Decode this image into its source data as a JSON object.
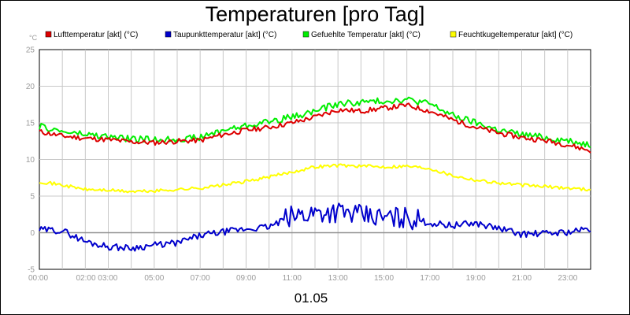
{
  "chart_data": {
    "type": "line",
    "title": "Temperaturen [pro Tag]",
    "ylabel": "°C",
    "xlabel": "01.05",
    "ylim": [
      -5,
      25
    ],
    "xlim": [
      0,
      24
    ],
    "y_ticks": [
      "25",
      "20",
      "15",
      "10",
      "5",
      "0",
      "-5"
    ],
    "x_tick_labels": [
      "00:00",
      "02:00 03:00",
      "05:00",
      "07:00",
      "09:00",
      "11:00",
      "13:00",
      "15:00",
      "17:00",
      "19:00",
      "21:00",
      "23:00"
    ],
    "grid": true,
    "legend_position": "top",
    "series": [
      {
        "name": "Lufttemperatur [akt] (°C)",
        "color": "#dd0000",
        "x": [
          0,
          1,
          2,
          3,
          4,
          5,
          6,
          7,
          8,
          9,
          10,
          11,
          12,
          13,
          14,
          15,
          16,
          17,
          18,
          19,
          20,
          21,
          22,
          23,
          24
        ],
        "values": [
          13.8,
          13.2,
          12.9,
          12.7,
          12.4,
          12.3,
          12.5,
          12.6,
          13.4,
          14.0,
          14.4,
          15.0,
          15.8,
          16.8,
          16.6,
          17.0,
          17.4,
          16.6,
          15.4,
          14.4,
          13.6,
          13.0,
          12.6,
          12.0,
          11.2
        ]
      },
      {
        "name": "Taupunkttemperatur [akt] (°C)",
        "color": "#0000cc",
        "x": [
          0,
          1,
          2,
          3,
          4,
          5,
          6,
          7,
          8,
          9,
          10,
          11,
          12,
          13,
          14,
          15,
          16,
          17,
          18,
          19,
          20,
          21,
          22,
          23,
          24
        ],
        "values": [
          0.4,
          0.3,
          -1.2,
          -1.9,
          -2.1,
          -1.7,
          -1.4,
          -0.4,
          0.1,
          0.5,
          0.8,
          2.2,
          2.8,
          2.9,
          2.3,
          2.0,
          2.1,
          1.3,
          1.0,
          1.3,
          0.6,
          -0.2,
          -0.1,
          0.1,
          0.5
        ]
      },
      {
        "name": "Gefuehlte Temperatur [akt] (°C)",
        "color": "#00ee00",
        "x": [
          0,
          1,
          2,
          3,
          4,
          5,
          6,
          7,
          8,
          9,
          10,
          11,
          12,
          13,
          14,
          15,
          16,
          17,
          18,
          19,
          20,
          21,
          22,
          23,
          24
        ],
        "values": [
          14.5,
          13.8,
          13.4,
          13.1,
          12.8,
          12.7,
          12.8,
          13.0,
          14.0,
          14.6,
          15.2,
          15.8,
          16.6,
          17.6,
          17.8,
          18.0,
          18.2,
          17.6,
          16.0,
          15.0,
          14.0,
          13.4,
          13.0,
          12.6,
          12.0
        ]
      },
      {
        "name": "Feuchtkugeltemperatur [akt] (°C)",
        "color": "#ffff00",
        "x": [
          0,
          1,
          2,
          3,
          4,
          5,
          6,
          7,
          8,
          9,
          10,
          11,
          12,
          13,
          14,
          15,
          16,
          17,
          18,
          19,
          20,
          21,
          22,
          23,
          24
        ],
        "values": [
          7.0,
          6.5,
          5.9,
          5.8,
          5.6,
          5.7,
          5.9,
          6.1,
          6.5,
          7.0,
          7.6,
          8.3,
          9.0,
          9.2,
          9.1,
          9.0,
          9.1,
          8.8,
          7.8,
          7.2,
          6.8,
          6.5,
          6.3,
          6.1,
          5.9
        ]
      }
    ]
  }
}
